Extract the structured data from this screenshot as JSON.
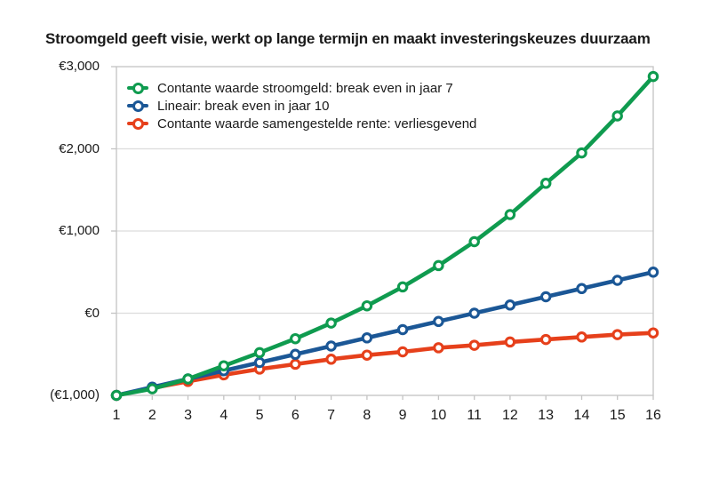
{
  "title": "Stroomgeld geeft visie, werkt op lange termijn en maakt investeringskeuzes duurzaam",
  "colors": {
    "text": "#1a1a1a",
    "grid": "#dcdcdc",
    "border": "#c4c4c4",
    "green": "#0f9b4f",
    "blue": "#1b5796",
    "red": "#e6401b"
  },
  "chart_data": {
    "type": "line",
    "title": "Stroomgeld geeft visie, werkt op lange termijn en maakt investeringskeuzes duurzaam",
    "xlabel": "",
    "ylabel": "",
    "x": [
      1,
      2,
      3,
      4,
      5,
      6,
      7,
      8,
      9,
      10,
      11,
      12,
      13,
      14,
      15,
      16
    ],
    "ylim": [
      -1000,
      3000
    ],
    "y_ticks": [
      {
        "label": "€3,000",
        "value": 3000
      },
      {
        "label": "€2,000",
        "value": 2000
      },
      {
        "label": "€1,000",
        "value": 1000
      },
      {
        "label": "€0",
        "value": 0
      },
      {
        "label": "(€1,000)",
        "value": -1000
      }
    ],
    "grid": "horizontal",
    "legend_position": "top-left-inside",
    "marker_style": "open-circle",
    "series": [
      {
        "name": "Contante waarde stroomgeld: break even in jaar 7",
        "color": "#0f9b4f",
        "values": [
          -1000,
          -920,
          -800,
          -640,
          -480,
          -310,
          -120,
          90,
          320,
          580,
          870,
          1200,
          1580,
          1950,
          2400,
          2880
        ]
      },
      {
        "name": "Lineair: break even in jaar 10",
        "color": "#1b5796",
        "values": [
          -1000,
          -900,
          -800,
          -700,
          -600,
          -500,
          -400,
          -300,
          -200,
          -100,
          0,
          100,
          200,
          300,
          400,
          500
        ]
      },
      {
        "name": "Contante waarde samengestelde rente: verliesgevend",
        "color": "#e6401b",
        "values": [
          -1000,
          -910,
          -830,
          -750,
          -680,
          -620,
          -560,
          -510,
          -470,
          -420,
          -390,
          -350,
          -320,
          -290,
          -260,
          -240
        ]
      }
    ]
  }
}
